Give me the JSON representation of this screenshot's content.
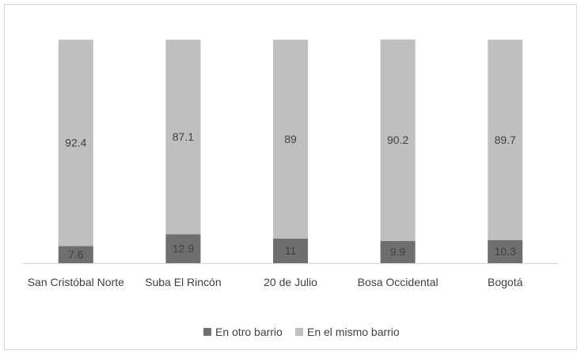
{
  "chart_data": {
    "type": "stacked_bar",
    "categories": [
      "San Cristóbal Norte",
      "Suba El Rincón",
      "20 de Julio",
      "Bosa Occidental",
      "Bogotá"
    ],
    "series": [
      {
        "name": "En otro barrio",
        "color": "#6f6f6f",
        "values": [
          7.6,
          12.9,
          11,
          9.9,
          10.3
        ]
      },
      {
        "name": "En el mismo barrio",
        "color": "#bfbfbf",
        "values": [
          92.4,
          87.1,
          89,
          90.2,
          89.7
        ]
      }
    ],
    "legend": "bottom"
  }
}
